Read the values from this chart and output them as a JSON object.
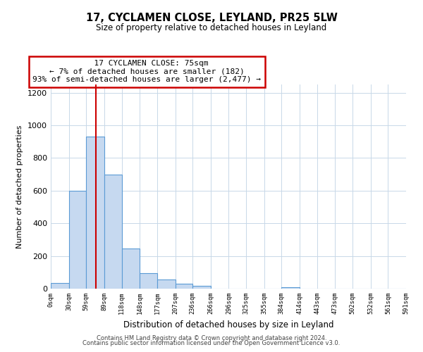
{
  "title": "17, CYCLAMEN CLOSE, LEYLAND, PR25 5LW",
  "subtitle": "Size of property relative to detached houses in Leyland",
  "xlabel": "Distribution of detached houses by size in Leyland",
  "ylabel": "Number of detached properties",
  "bin_edges": [
    0,
    30,
    59,
    89,
    118,
    148,
    177,
    207,
    236,
    266,
    296,
    325,
    355,
    384,
    414,
    443,
    473,
    502,
    532,
    561,
    591
  ],
  "bar_heights": [
    35,
    600,
    930,
    700,
    245,
    95,
    55,
    30,
    18,
    0,
    0,
    0,
    0,
    10,
    0,
    0,
    0,
    0,
    0,
    0
  ],
  "bar_color": "#c6d9f0",
  "bar_edgecolor": "#5b9bd5",
  "vline_x": 75,
  "vline_color": "#cc0000",
  "annotation_title": "17 CYCLAMEN CLOSE: 75sqm",
  "annotation_line1": "← 7% of detached houses are smaller (182)",
  "annotation_line2": "93% of semi-detached houses are larger (2,477) →",
  "annotation_box_edgecolor": "#cc0000",
  "annotation_box_facecolor": "#ffffff",
  "ylim": [
    0,
    1250
  ],
  "tick_labels": [
    "0sqm",
    "30sqm",
    "59sqm",
    "89sqm",
    "118sqm",
    "148sqm",
    "177sqm",
    "207sqm",
    "236sqm",
    "266sqm",
    "296sqm",
    "325sqm",
    "355sqm",
    "384sqm",
    "414sqm",
    "443sqm",
    "473sqm",
    "502sqm",
    "532sqm",
    "561sqm",
    "591sqm"
  ],
  "footer_line1": "Contains HM Land Registry data © Crown copyright and database right 2024.",
  "footer_line2": "Contains public sector information licensed under the Open Government Licence v3.0.",
  "background_color": "#ffffff",
  "grid_color": "#c8d8e8"
}
